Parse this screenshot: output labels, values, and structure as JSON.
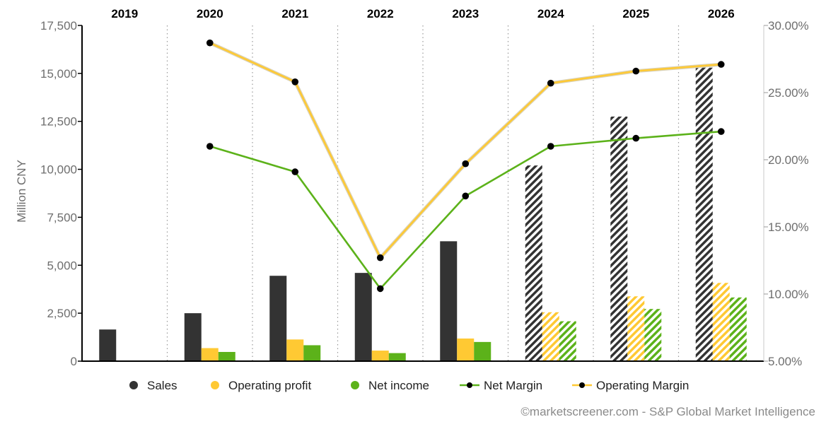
{
  "chart_data": {
    "type": "bar",
    "categories": [
      "2019",
      "2020",
      "2021",
      "2022",
      "2023",
      "2024",
      "2025",
      "2026"
    ],
    "projected_from": "2024",
    "ylabel": "Million CNY",
    "ylim": [
      0,
      17500
    ],
    "y_ticks": [
      "0",
      "2,500",
      "5,000",
      "7,500",
      "10,000",
      "12,500",
      "15,000",
      "17,500"
    ],
    "y2lim": [
      5,
      30
    ],
    "y2_ticks": [
      "5.00%",
      "10.00%",
      "15.00%",
      "20.00%",
      "25.00%",
      "30.00%"
    ],
    "bar_series": [
      {
        "name": "Sales",
        "color": "#333333",
        "values": [
          1650,
          2500,
          4450,
          4600,
          6250,
          10200,
          12750,
          15300
        ]
      },
      {
        "name": "Operating profit",
        "color": "#ffc933",
        "values": [
          null,
          680,
          1130,
          550,
          1180,
          2550,
          3380,
          4080
        ]
      },
      {
        "name": "Net income",
        "color": "#5cb21a",
        "values": [
          null,
          480,
          830,
          420,
          1000,
          2080,
          2720,
          3320
        ]
      }
    ],
    "line_series": [
      {
        "name": "Net Margin",
        "color": "#5cb21a",
        "axis": "right",
        "values": [
          null,
          21.0,
          19.1,
          10.4,
          17.3,
          21.0,
          21.6,
          22.1
        ]
      },
      {
        "name": "Operating Margin",
        "color": "#ffc933",
        "axis": "right",
        "values": [
          null,
          28.7,
          25.8,
          12.7,
          19.7,
          25.7,
          26.6,
          27.1
        ]
      }
    ],
    "legend": [
      "Sales",
      "Operating profit",
      "Net income",
      "Net Margin",
      "Operating Margin"
    ],
    "legend_position": "bottom",
    "grid": "vertical dotted separators"
  },
  "copyright": "©marketscreener.com - S&P Global Market Intelligence"
}
